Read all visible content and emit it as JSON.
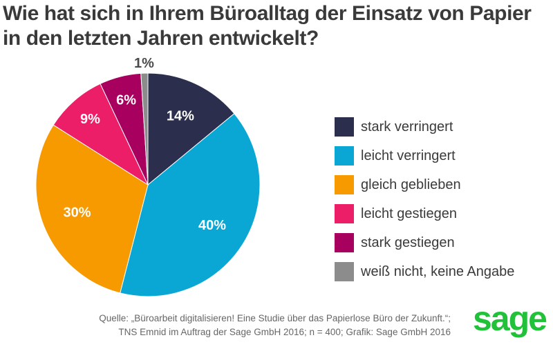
{
  "header": {
    "title_line1": "Wie hat sich in Ihrem Büroalltag der Einsatz von Papier",
    "title_line2": "in den letzten Jahren entwickelt?"
  },
  "chart_data": {
    "type": "pie",
    "slices": [
      {
        "label": "stark verringert",
        "value": 14,
        "display": "14%",
        "color": "#2b2f4d"
      },
      {
        "label": "leicht verringert",
        "value": 40,
        "display": "40%",
        "color": "#0aa6d4"
      },
      {
        "label": "gleich geblieben",
        "value": 30,
        "display": "30%",
        "color": "#f79a00"
      },
      {
        "label": "leicht gestiegen",
        "value": 9,
        "display": "9%",
        "color": "#ec1e67"
      },
      {
        "label": "stark gestiegen",
        "value": 6,
        "display": "6%",
        "color": "#a8005e"
      },
      {
        "label": "weiß nicht, keine Angabe",
        "value": 1,
        "display": "1%",
        "color": "#8c8c8c"
      }
    ],
    "legend_position": "right"
  },
  "source": {
    "line1": "Quelle: „Büroarbeit digitalisieren! Eine Studie über das Papierlose Büro der Zukunft.“;",
    "line2": "TNS Emnid im Auftrag der Sage GmbH 2016; n = 400; Grafik: Sage GmbH 2016"
  },
  "logo": {
    "text": "sage",
    "color": "#22c13a"
  }
}
